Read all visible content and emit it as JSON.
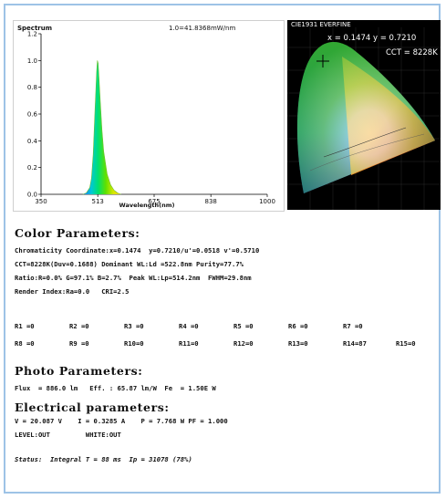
{
  "spectrum": {
    "title": "Spectrum",
    "header_value": "1.0=41.8368mW/nm",
    "xlabel": "Wavelength(nm)",
    "y_ticks": [
      "1.2",
      "1.0",
      "0.8",
      "0.6",
      "0.4",
      "0.2",
      "0.0"
    ],
    "x_ticks": [
      "350",
      "513",
      "675",
      "838",
      "1000"
    ]
  },
  "chart_data": {
    "type": "line",
    "title": "Spectrum",
    "xlabel": "Wavelength(nm)",
    "ylabel": "",
    "xlim": [
      350,
      1000
    ],
    "ylim": [
      0,
      1.2
    ],
    "x": [
      470,
      480,
      490,
      495,
      500,
      505,
      510,
      512,
      514,
      516,
      520,
      525,
      530,
      540,
      550,
      560,
      570,
      580
    ],
    "series": [
      {
        "values": [
          0.0,
          0.01,
          0.05,
          0.12,
          0.3,
          0.62,
          0.92,
          1.0,
          0.98,
          0.9,
          0.7,
          0.48,
          0.32,
          0.15,
          0.07,
          0.03,
          0.01,
          0.0
        ]
      }
    ]
  },
  "cie": {
    "title": "CIE1931 EVERFINE",
    "coords": "x = 0.1474  y = 0.7210",
    "cct": "CCT = 8228K"
  },
  "color_params": {
    "title": "Color Parameters:",
    "lines": [
      "Chromaticity Coordinate:x=0.1474  y=0.7210/u'=0.0518 v'=0.5710",
      "CCT=8228K(Duv=0.1688) Dominant WL:Ld =522.8nm Purity=77.7%",
      "Ratio:R=0.0% G=97.1% B=2.7%  Peak WL:Lp=514.2nm  FWHM=29.8nm",
      "Render Index:Ra=0.0   CRI=2.5"
    ]
  },
  "r_values": {
    "row1": [
      "R1 =0",
      "R2 =0",
      "R3 =0",
      "R4 =0",
      "R5 =0",
      "R6 =0",
      "R7 =0"
    ],
    "row2": [
      "R8 =0",
      "R9 =0",
      "R10=0",
      "R11=0",
      "R12=0",
      "R13=0",
      "R14=87",
      "R15=0"
    ]
  },
  "photo_params": {
    "title": "Photo Parameters:",
    "line": "Flux  = 886.0 lm   Eff. : 65.87 lm/W  Fe  = 1.50E W"
  },
  "electrical_params": {
    "title": "Electrical parameters:",
    "line1": "V = 20.087 V    I = 0.3285 A    P = 7.768 W PF = 1.000",
    "line2": "LEVEL:OUT         WHITE:OUT"
  },
  "status": {
    "line": "Status:  Integral T = 88 ms  Ip = 31078 (78%)"
  },
  "colors": {
    "frame_border": "#9ec3e6",
    "cie_background": "#000000"
  }
}
